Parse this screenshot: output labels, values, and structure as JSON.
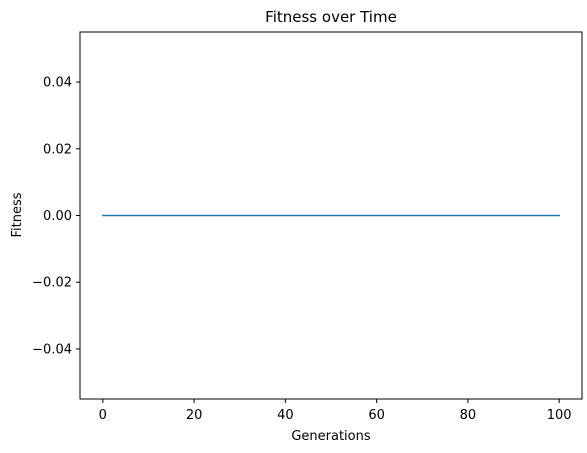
{
  "chart_data": {
    "type": "line",
    "title": "Fitness over Time",
    "xlabel": "Generations",
    "ylabel": "Fitness",
    "xlim": [
      -5,
      105
    ],
    "ylim": [
      -0.055,
      0.055
    ],
    "xticks": [
      0,
      20,
      40,
      60,
      80,
      100
    ],
    "xtick_labels": [
      "0",
      "20",
      "40",
      "60",
      "80",
      "100"
    ],
    "yticks": [
      0.04,
      0.02,
      0.0,
      -0.02,
      -0.04
    ],
    "ytick_labels": [
      "0.04",
      "0.02",
      "0.00",
      "−0.02",
      "−0.04"
    ],
    "grid": false,
    "series": [
      {
        "color": "#1f77b4",
        "x": [
          0,
          100
        ],
        "y": [
          0,
          0
        ]
      }
    ]
  }
}
